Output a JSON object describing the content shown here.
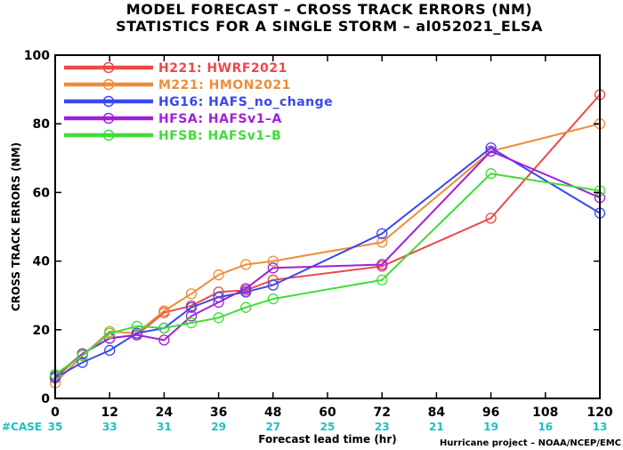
{
  "colors": {
    "case_text": "#20c0c0"
  },
  "chart_data": {
    "type": "line",
    "title": "MODEL FORECAST – CROSS TRACK ERRORS (NM)",
    "subtitle": "STATISTICS FOR A SINGLE STORM – al052021_ELSA",
    "xlabel": "Forecast lead time (hr)",
    "ylabel": "CROSS TRACK ERRORS (NM)",
    "xlim": [
      0,
      120
    ],
    "ylim": [
      0,
      100
    ],
    "xticks": [
      0,
      12,
      24,
      36,
      48,
      60,
      72,
      84,
      96,
      108,
      120
    ],
    "yticks": [
      0,
      20,
      40,
      60,
      80,
      100
    ],
    "legend_position": "top-left",
    "cases_label": "#CASE",
    "cases": [
      35,
      33,
      31,
      29,
      27,
      25,
      23,
      21,
      19,
      16,
      13
    ],
    "credit": "Hurricane project – NOAA/NCEP/EMC",
    "series": [
      {
        "name": "H221:  HWRF2021",
        "color": "#f04848",
        "x": [
          0,
          6,
          12,
          18,
          24,
          30,
          36,
          42,
          48,
          72,
          96,
          120
        ],
        "y": [
          6,
          13,
          17.5,
          18.5,
          25,
          27,
          31,
          31.5,
          34.5,
          38.5,
          52.5,
          88.5
        ]
      },
      {
        "name": "M221:  HMON2021",
        "color": "#f08c38",
        "x": [
          0,
          6,
          12,
          18,
          24,
          30,
          36,
          42,
          48,
          72,
          96,
          120
        ],
        "y": [
          4.5,
          12.5,
          19.5,
          19,
          25.5,
          30.5,
          36,
          39,
          40,
          45.5,
          72,
          80
        ]
      },
      {
        "name": "HG16:  HAFS_no_change",
        "color": "#3848f0",
        "x": [
          0,
          6,
          12,
          18,
          24,
          30,
          36,
          42,
          48,
          72,
          96,
          120
        ],
        "y": [
          6,
          10.5,
          14,
          19,
          20.5,
          26.5,
          29.5,
          31,
          33,
          48,
          73,
          54
        ]
      },
      {
        "name": "HFSA:  HAFSv1–A",
        "color": "#a020d8",
        "x": [
          0,
          6,
          12,
          18,
          24,
          30,
          36,
          42,
          48,
          72,
          96,
          120
        ],
        "y": [
          6.5,
          13,
          17.5,
          18.5,
          17,
          24,
          28,
          32,
          38,
          39,
          72,
          58.5
        ]
      },
      {
        "name": "HFSB:  HAFSv1–B",
        "color": "#40dc38",
        "x": [
          0,
          6,
          12,
          18,
          24,
          30,
          36,
          42,
          48,
          72,
          96,
          120
        ],
        "y": [
          7,
          12.5,
          19,
          21,
          20.5,
          22,
          23.5,
          26.5,
          29,
          34.5,
          65.5,
          60.5
        ]
      }
    ]
  }
}
